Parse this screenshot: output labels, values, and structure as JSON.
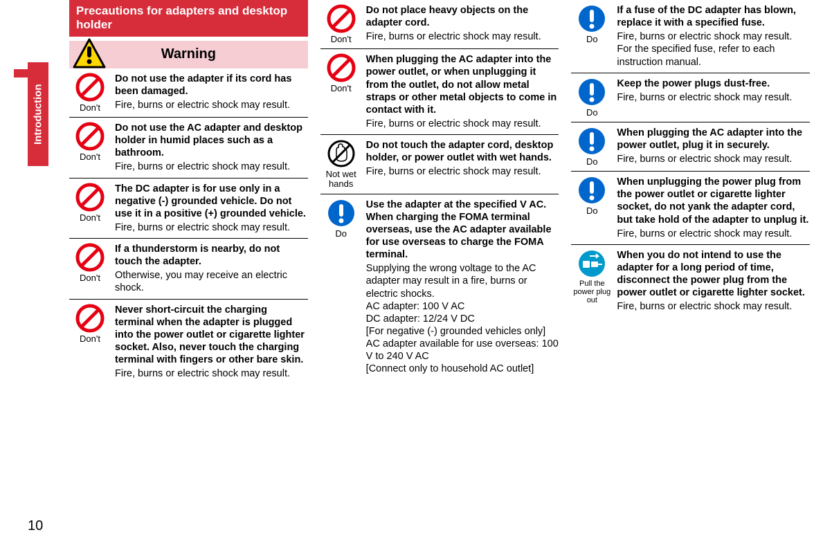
{
  "sideTab": "Introduction",
  "pageNumber": "10",
  "sectionHeader": "Precautions for adapters and desktop holder",
  "warningLabel": "Warning",
  "icons": {
    "dont": {
      "label": "Don't",
      "type": "prohibit"
    },
    "notwet": {
      "label": "Not wet hands",
      "type": "wethand"
    },
    "do": {
      "label": "Do",
      "type": "do"
    },
    "pull": {
      "label": "Pull the power plug out",
      "type": "pull"
    }
  },
  "columns": [
    {
      "hasHeader": true,
      "items": [
        {
          "icon": "dont",
          "bold": "Do not use the adapter if its cord has been damaged.",
          "body": "Fire, burns or electric shock may result."
        },
        {
          "icon": "dont",
          "bold": "Do not use the AC adapter and desktop holder in humid places such as a bathroom.",
          "body": "Fire, burns or electric shock may result."
        },
        {
          "icon": "dont",
          "bold": "The DC adapter is for use only in a negative (-) grounded vehicle. Do not use it in a positive (+) grounded vehicle.",
          "body": "Fire, burns or electric shock may result."
        },
        {
          "icon": "dont",
          "bold": "If a thunderstorm is nearby, do not touch the adapter.",
          "body": "Otherwise, you may receive an electric shock."
        },
        {
          "icon": "dont",
          "bold": "Never short-circuit the charging terminal when the adapter is plugged into the power outlet or cigarette lighter socket. Also, never touch the charging terminal with fingers or other bare skin.",
          "body": "Fire, burns or electric shock may result."
        }
      ]
    },
    {
      "hasHeader": false,
      "items": [
        {
          "icon": "dont",
          "bold": "Do not place heavy objects on the adapter cord.",
          "body": "Fire, burns or electric shock may result."
        },
        {
          "icon": "dont",
          "bold": "When plugging the AC adapter into the power outlet, or when unplugging it from the outlet, do not allow metal straps or other metal objects to come in contact with it.",
          "body": "Fire, burns or electric shock may result."
        },
        {
          "icon": "notwet",
          "bold": "Do not touch the adapter cord, desktop holder, or power outlet with wet hands.",
          "body": "Fire, burns or electric shock may result."
        },
        {
          "icon": "do",
          "bold": "Use the adapter at the specified V AC.\nWhen charging the FOMA terminal overseas, use the AC adapter available for use overseas to charge the FOMA terminal.",
          "body": "Supplying the wrong voltage to the AC adapter may result in a fire, burns or electric shocks.\nAC adapter: 100 V AC\nDC adapter: 12/24 V DC\n[For negative (-) grounded vehicles only]\nAC adapter available for use overseas: 100 V to 240 V AC\n[Connect only to household AC outlet]"
        }
      ]
    },
    {
      "hasHeader": false,
      "items": [
        {
          "icon": "do",
          "bold": "If a fuse of the DC adapter has blown, replace it with a specified fuse.",
          "body": "Fire, burns or electric shock may result.\nFor the specified fuse, refer to each instruction manual."
        },
        {
          "icon": "do",
          "bold": "Keep the power plugs dust-free.",
          "body": "Fire, burns or electric shock may result."
        },
        {
          "icon": "do",
          "bold": "When plugging the AC adapter into the power outlet, plug it in securely.",
          "body": "Fire, burns or electric shock may result."
        },
        {
          "icon": "do",
          "bold": "When unplugging the power plug from the power outlet or cigarette lighter socket, do not yank the adapter cord, but take hold of the adapter to unplug it.",
          "body": "Fire, burns or electric shock may result."
        },
        {
          "icon": "pull",
          "bold": "When you do not intend to use the adapter for a long period of time, disconnect the power plug from the power outlet or cigarette lighter socket.",
          "body": "Fire, burns or electric shock may result."
        }
      ]
    }
  ],
  "colors": {
    "accent": "#d72c3a",
    "warningBg": "#f7cdd4",
    "doBlue": "#0066cc",
    "prohibitRed": "#e60012",
    "pullBlue": "#0099cc"
  }
}
